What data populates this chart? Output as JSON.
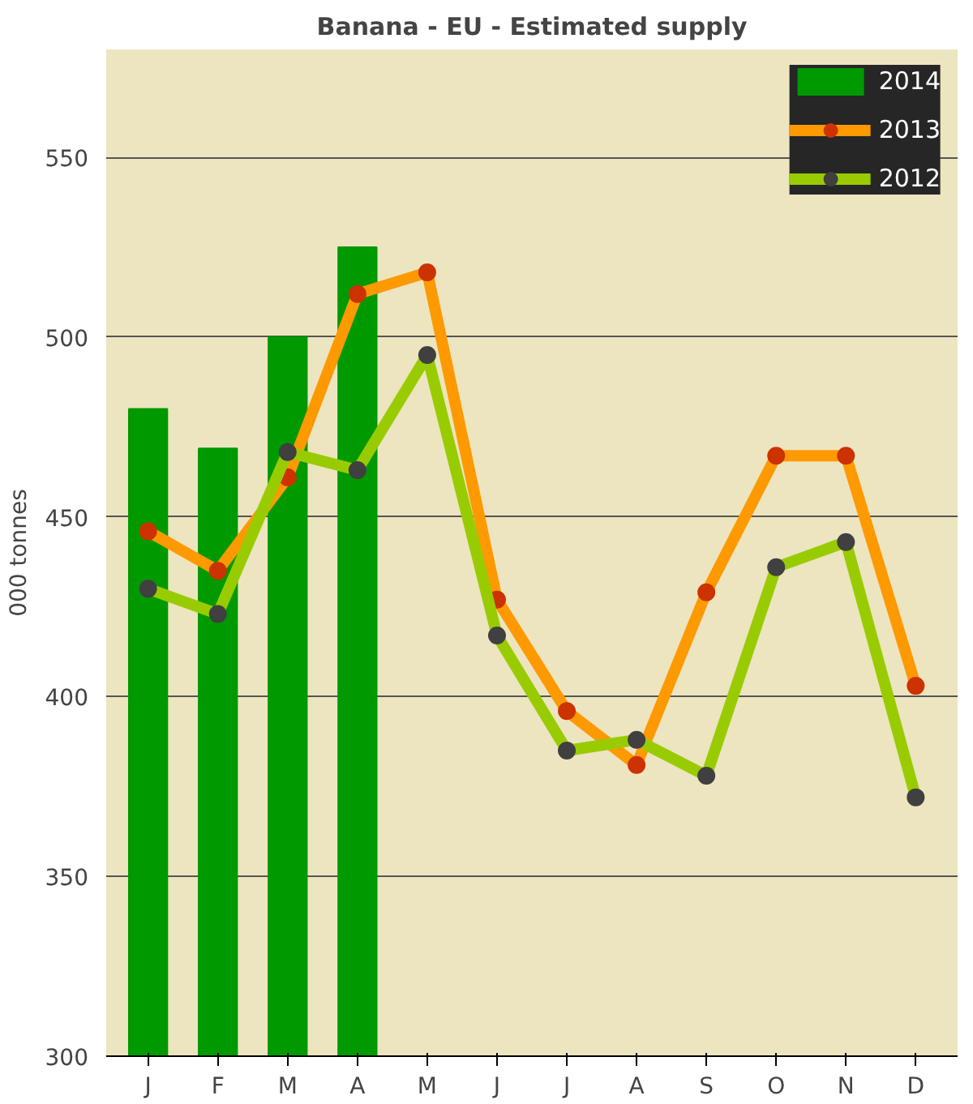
{
  "chart_data": {
    "type": "bar",
    "title": "Banana - EU - Estimated supply",
    "ylabel": "000 tonnes",
    "categories": [
      "J",
      "F",
      "M",
      "A",
      "M",
      "J",
      "J",
      "A",
      "S",
      "O",
      "N",
      "D"
    ],
    "series": [
      {
        "name": "2014",
        "color": "#009900",
        "values": [
          480,
          469,
          500,
          525,
          null,
          null,
          null,
          null,
          null,
          null,
          null,
          null
        ]
      },
      {
        "name": "2013",
        "type": "line",
        "color": "#ff9900",
        "colors": [
          "#cc3300",
          "#cc3300",
          "#cc3300",
          "#cc3300",
          "#cc3300",
          "#cc3300",
          "#cc3300",
          "#cc3300",
          "#cc3300",
          "#cc3300",
          "#cc3300",
          "#cc3300"
        ],
        "values": [
          446,
          435,
          461,
          512,
          518,
          427,
          396,
          381,
          429,
          467,
          467,
          403
        ]
      },
      {
        "name": "2012",
        "type": "line",
        "color": "#99cc00",
        "colors": [
          "#404040",
          "#404040",
          "#404040",
          "#404040",
          "#404040",
          "#404040",
          "#404040",
          "#404040",
          "#404040",
          "#404040",
          "#404040",
          "#404040"
        ],
        "values": [
          430,
          423,
          468,
          463,
          495,
          417,
          385,
          388,
          378,
          436,
          443,
          372
        ]
      }
    ],
    "ylim": [
      300,
      580
    ],
    "yticks": [
      300,
      350,
      400,
      450,
      500,
      550
    ],
    "grid": "y",
    "legend": "top right",
    "marker": "circle"
  }
}
